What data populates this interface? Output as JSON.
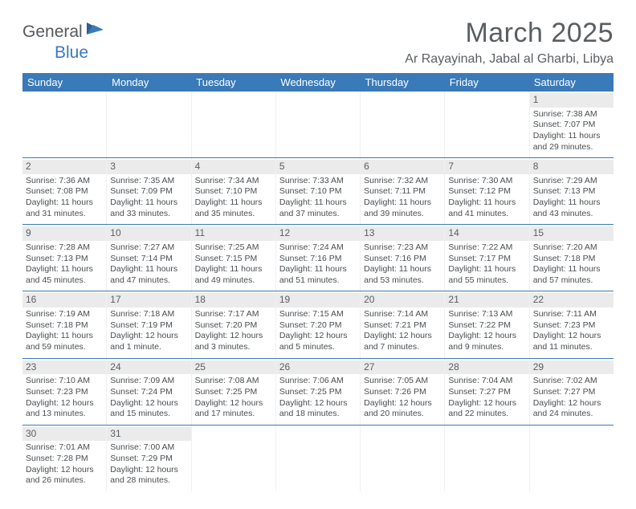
{
  "logo": {
    "general": "General",
    "blue": "Blue"
  },
  "title": "March 2025",
  "location": "Ar Rayayinah, Jabal al Gharbi, Libya",
  "colors": {
    "header_bg": "#3a7ab8",
    "header_text": "#ffffff",
    "daynum_bg": "#ebebeb",
    "text": "#4a4e51",
    "title_text": "#5a5e61"
  },
  "dayHeaders": [
    "Sunday",
    "Monday",
    "Tuesday",
    "Wednesday",
    "Thursday",
    "Friday",
    "Saturday"
  ],
  "weeks": [
    [
      null,
      null,
      null,
      null,
      null,
      null,
      {
        "n": "1",
        "sr": "7:38 AM",
        "ss": "7:07 PM",
        "dl": "11 hours and 29 minutes."
      }
    ],
    [
      {
        "n": "2",
        "sr": "7:36 AM",
        "ss": "7:08 PM",
        "dl": "11 hours and 31 minutes."
      },
      {
        "n": "3",
        "sr": "7:35 AM",
        "ss": "7:09 PM",
        "dl": "11 hours and 33 minutes."
      },
      {
        "n": "4",
        "sr": "7:34 AM",
        "ss": "7:10 PM",
        "dl": "11 hours and 35 minutes."
      },
      {
        "n": "5",
        "sr": "7:33 AM",
        "ss": "7:10 PM",
        "dl": "11 hours and 37 minutes."
      },
      {
        "n": "6",
        "sr": "7:32 AM",
        "ss": "7:11 PM",
        "dl": "11 hours and 39 minutes."
      },
      {
        "n": "7",
        "sr": "7:30 AM",
        "ss": "7:12 PM",
        "dl": "11 hours and 41 minutes."
      },
      {
        "n": "8",
        "sr": "7:29 AM",
        "ss": "7:13 PM",
        "dl": "11 hours and 43 minutes."
      }
    ],
    [
      {
        "n": "9",
        "sr": "7:28 AM",
        "ss": "7:13 PM",
        "dl": "11 hours and 45 minutes."
      },
      {
        "n": "10",
        "sr": "7:27 AM",
        "ss": "7:14 PM",
        "dl": "11 hours and 47 minutes."
      },
      {
        "n": "11",
        "sr": "7:25 AM",
        "ss": "7:15 PM",
        "dl": "11 hours and 49 minutes."
      },
      {
        "n": "12",
        "sr": "7:24 AM",
        "ss": "7:16 PM",
        "dl": "11 hours and 51 minutes."
      },
      {
        "n": "13",
        "sr": "7:23 AM",
        "ss": "7:16 PM",
        "dl": "11 hours and 53 minutes."
      },
      {
        "n": "14",
        "sr": "7:22 AM",
        "ss": "7:17 PM",
        "dl": "11 hours and 55 minutes."
      },
      {
        "n": "15",
        "sr": "7:20 AM",
        "ss": "7:18 PM",
        "dl": "11 hours and 57 minutes."
      }
    ],
    [
      {
        "n": "16",
        "sr": "7:19 AM",
        "ss": "7:18 PM",
        "dl": "11 hours and 59 minutes."
      },
      {
        "n": "17",
        "sr": "7:18 AM",
        "ss": "7:19 PM",
        "dl": "12 hours and 1 minute."
      },
      {
        "n": "18",
        "sr": "7:17 AM",
        "ss": "7:20 PM",
        "dl": "12 hours and 3 minutes."
      },
      {
        "n": "19",
        "sr": "7:15 AM",
        "ss": "7:20 PM",
        "dl": "12 hours and 5 minutes."
      },
      {
        "n": "20",
        "sr": "7:14 AM",
        "ss": "7:21 PM",
        "dl": "12 hours and 7 minutes."
      },
      {
        "n": "21",
        "sr": "7:13 AM",
        "ss": "7:22 PM",
        "dl": "12 hours and 9 minutes."
      },
      {
        "n": "22",
        "sr": "7:11 AM",
        "ss": "7:23 PM",
        "dl": "12 hours and 11 minutes."
      }
    ],
    [
      {
        "n": "23",
        "sr": "7:10 AM",
        "ss": "7:23 PM",
        "dl": "12 hours and 13 minutes."
      },
      {
        "n": "24",
        "sr": "7:09 AM",
        "ss": "7:24 PM",
        "dl": "12 hours and 15 minutes."
      },
      {
        "n": "25",
        "sr": "7:08 AM",
        "ss": "7:25 PM",
        "dl": "12 hours and 17 minutes."
      },
      {
        "n": "26",
        "sr": "7:06 AM",
        "ss": "7:25 PM",
        "dl": "12 hours and 18 minutes."
      },
      {
        "n": "27",
        "sr": "7:05 AM",
        "ss": "7:26 PM",
        "dl": "12 hours and 20 minutes."
      },
      {
        "n": "28",
        "sr": "7:04 AM",
        "ss": "7:27 PM",
        "dl": "12 hours and 22 minutes."
      },
      {
        "n": "29",
        "sr": "7:02 AM",
        "ss": "7:27 PM",
        "dl": "12 hours and 24 minutes."
      }
    ],
    [
      {
        "n": "30",
        "sr": "7:01 AM",
        "ss": "7:28 PM",
        "dl": "12 hours and 26 minutes."
      },
      {
        "n": "31",
        "sr": "7:00 AM",
        "ss": "7:29 PM",
        "dl": "12 hours and 28 minutes."
      },
      null,
      null,
      null,
      null,
      null
    ]
  ],
  "labels": {
    "sunrise": "Sunrise: ",
    "sunset": "Sunset: ",
    "daylight": "Daylight: "
  }
}
